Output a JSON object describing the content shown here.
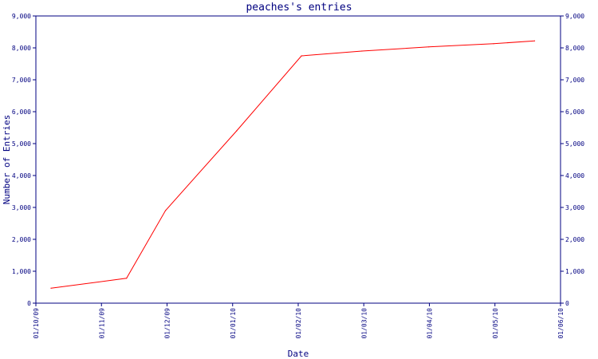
{
  "chart_data": {
    "type": "line",
    "title": "peaches's entries",
    "xlabel": "Date",
    "ylabel": "Number of Entries",
    "x_ticks": [
      "01/10/09",
      "01/11/09",
      "01/12/09",
      "01/01/10",
      "01/02/10",
      "01/03/10",
      "01/04/10",
      "01/05/10",
      "01/06/10"
    ],
    "y_ticks": [
      "0",
      "1,000",
      "2,000",
      "3,000",
      "4,000",
      "5,000",
      "6,000",
      "7,000",
      "8,000",
      "9,000"
    ],
    "ylim": [
      0,
      9000
    ],
    "xlim": [
      "2009-10-01",
      "2010-06-01"
    ],
    "series": [
      {
        "color": "#ff0000",
        "points": [
          {
            "x": "2009-10-08",
            "y": 470
          },
          {
            "x": "2009-11-12",
            "y": 780
          },
          {
            "x": "2009-11-30",
            "y": 2900
          },
          {
            "x": "2010-01-02",
            "y": 5400
          },
          {
            "x": "2010-02-01",
            "y": 7750
          },
          {
            "x": "2010-03-01",
            "y": 7900
          },
          {
            "x": "2010-04-01",
            "y": 8030
          },
          {
            "x": "2010-05-01",
            "y": 8130
          },
          {
            "x": "2010-05-20",
            "y": 8220
          }
        ]
      }
    ],
    "axis_color": "#000080",
    "grid": false,
    "right_axis_duplicate": true
  }
}
